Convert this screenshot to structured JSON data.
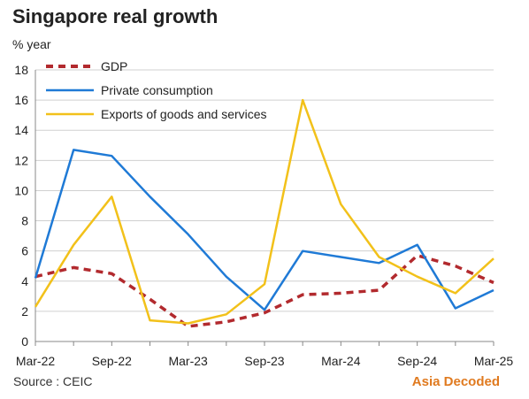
{
  "title": "Singapore real growth",
  "unit": "% year",
  "source": "Source : CEIC",
  "brand": "Asia Decoded",
  "chart_data": {
    "type": "line",
    "x": [
      "Mar-22",
      "Jun-22",
      "Sep-22",
      "Dec-22",
      "Mar-23",
      "Jun-23",
      "Sep-23",
      "Dec-23",
      "Mar-24",
      "Jun-24",
      "Sep-24",
      "Dec-24",
      "Mar-25"
    ],
    "x_tick_labels": [
      "Mar-22",
      "Sep-22",
      "Mar-23",
      "Sep-23",
      "Mar-24",
      "Sep-24",
      "Mar-25"
    ],
    "y_ticks": [
      0,
      2,
      4,
      6,
      8,
      10,
      12,
      14,
      16,
      18
    ],
    "ylim": [
      0,
      18
    ],
    "grid": "horizontal",
    "legend": "top-left",
    "series": [
      {
        "name": "GDP",
        "color": "#b22a2e",
        "style": "dashed",
        "values": [
          4.3,
          4.9,
          4.5,
          2.8,
          1.0,
          1.3,
          1.9,
          3.1,
          3.2,
          3.4,
          5.7,
          5.0,
          3.9
        ]
      },
      {
        "name": "Private consumption",
        "color": "#1f7ad6",
        "style": "solid",
        "values": [
          4.2,
          12.7,
          12.3,
          9.6,
          7.1,
          4.3,
          2.1,
          6.0,
          5.6,
          5.2,
          6.4,
          2.2,
          3.4
        ]
      },
      {
        "name": "Exports of goods and services",
        "color": "#f2c11a",
        "style": "solid",
        "values": [
          2.3,
          6.4,
          9.6,
          1.4,
          1.2,
          1.8,
          3.8,
          16.0,
          9.1,
          5.6,
          4.3,
          3.2,
          5.5
        ]
      }
    ]
  }
}
